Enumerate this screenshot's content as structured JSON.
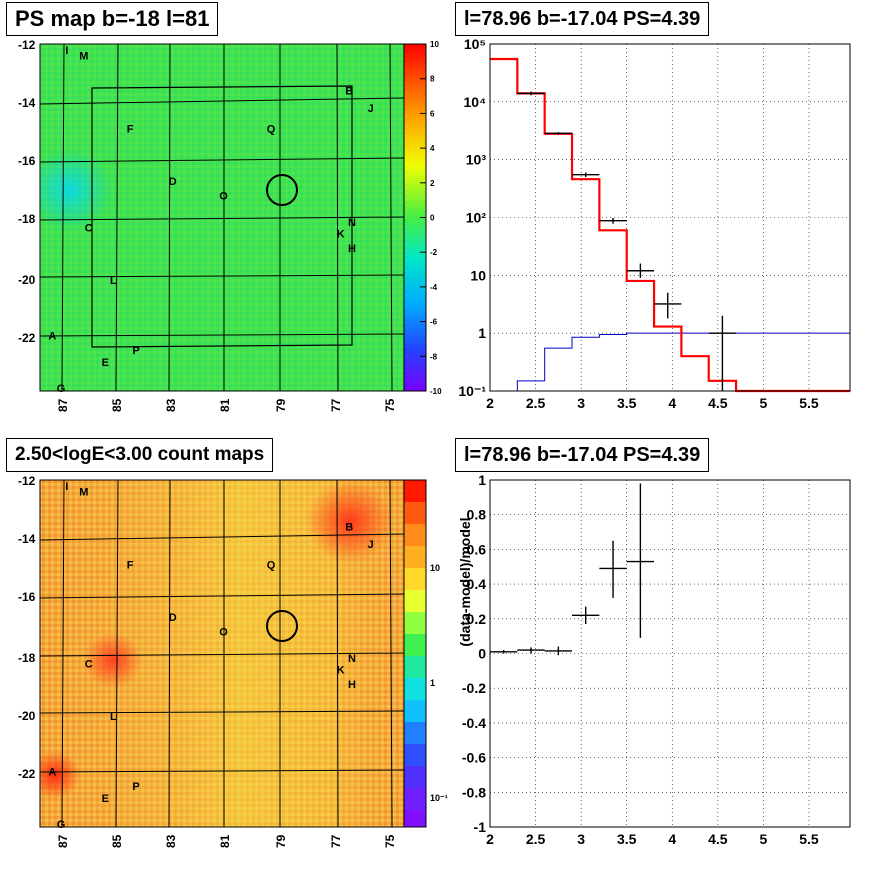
{
  "panels": {
    "top_left_title": "PS map b=-18 l=81",
    "top_right_title": "l=78.96 b=-17.04 PS=4.39",
    "bottom_left_title": "2.50<logE<3.00 count maps",
    "bottom_right_title": "l=78.96 b=-17.04 PS=4.39"
  },
  "colors": {
    "ps_map_base": "#3ee04e",
    "count_map_base": "#f2a23a",
    "data_line": "#000000",
    "model_line": "#ff0000",
    "background_line": "#0000cc"
  },
  "chart_data": [
    {
      "type": "heatmap",
      "title": "PS map b=-18 l=81",
      "x_ticks": [
        "87",
        "85",
        "83",
        "81",
        "79",
        "77",
        "75"
      ],
      "y_ticks": [
        "-12",
        "-14",
        "-16",
        "-18",
        "-20",
        "-22"
      ],
      "xlim": [
        87.5,
        74.5
      ],
      "ylim": [
        -23.8,
        -11.9
      ],
      "colorbar": {
        "ticks": [
          "10",
          "8",
          "6",
          "4",
          "2",
          "0",
          "-2",
          "-4",
          "-6",
          "-8",
          "-10"
        ],
        "range": [
          -10,
          10
        ]
      },
      "source_labels": [
        {
          "text": "M",
          "l": 86.1,
          "b": -12.3
        },
        {
          "text": "I",
          "l": 86.6,
          "b": -12.1
        },
        {
          "text": "B",
          "l": 76.6,
          "b": -13.5
        },
        {
          "text": "J",
          "l": 75.8,
          "b": -14.1
        },
        {
          "text": "F",
          "l": 84.4,
          "b": -14.8
        },
        {
          "text": "Q",
          "l": 79.4,
          "b": -14.8
        },
        {
          "text": "D",
          "l": 82.9,
          "b": -16.6
        },
        {
          "text": "O",
          "l": 81.1,
          "b": -17.1
        },
        {
          "text": "N",
          "l": 76.5,
          "b": -18.0
        },
        {
          "text": "K",
          "l": 76.9,
          "b": -18.4
        },
        {
          "text": "H",
          "l": 76.5,
          "b": -18.9
        },
        {
          "text": "C",
          "l": 85.9,
          "b": -18.2
        },
        {
          "text": "L",
          "l": 85.0,
          "b": -20.0
        },
        {
          "text": "A",
          "l": 87.2,
          "b": -21.9
        },
        {
          "text": "P",
          "l": 84.2,
          "b": -22.4
        },
        {
          "text": "E",
          "l": 85.3,
          "b": -22.8
        },
        {
          "text": "G",
          "l": 86.9,
          "b": -23.7
        }
      ],
      "circle_center": {
        "l": 78.96,
        "b": -17.04
      }
    },
    {
      "type": "line",
      "title": "l=78.96 b=-17.04 PS=4.39",
      "x_ticks": [
        "2",
        "2.5",
        "3",
        "3.5",
        "4",
        "4.5",
        "5",
        "5.5"
      ],
      "y_ticks": [
        "10⁵",
        "10⁴",
        "10³",
        "10²",
        "10",
        "1",
        "10⁻¹"
      ],
      "xlim": [
        2.0,
        5.95
      ],
      "ylim": [
        0.1,
        100000
      ],
      "y_scale": "log",
      "grid": true,
      "bin_edges": [
        2.0,
        2.3,
        2.6,
        2.9,
        3.2,
        3.5,
        3.8,
        4.1,
        4.4,
        4.7,
        5.0,
        5.95
      ],
      "series": [
        {
          "values": [
            55000,
            14000,
            2800,
            460,
            60,
            8,
            1.3,
            0.4,
            0.15,
            0.1,
            0.1
          ]
        },
        {
          "values": [
            0.1,
            0.15,
            0.55,
            0.85,
            0.95,
            1.0,
            1.0,
            1.0,
            1.0,
            1.0,
            1.0
          ]
        }
      ],
      "data_points": [
        {
          "x": 2.45,
          "y": 14000,
          "ylo": 13000,
          "yhi": 15000
        },
        {
          "x": 2.75,
          "y": 2850,
          "ylo": 2700,
          "yhi": 3000
        },
        {
          "x": 3.05,
          "y": 550,
          "ylo": 500,
          "yhi": 600
        },
        {
          "x": 3.35,
          "y": 88,
          "ylo": 78,
          "yhi": 98
        },
        {
          "x": 3.65,
          "y": 12,
          "ylo": 9,
          "yhi": 16
        },
        {
          "x": 3.95,
          "y": 3.2,
          "ylo": 1.8,
          "yhi": 5
        },
        {
          "x": 4.55,
          "y": 1.0,
          "ylo": 0.1,
          "yhi": 2.0
        }
      ]
    },
    {
      "type": "heatmap",
      "title": "2.50<logE<3.00 count maps",
      "x_ticks": [
        "87",
        "85",
        "83",
        "81",
        "79",
        "77",
        "75"
      ],
      "y_ticks": [
        "-12",
        "-14",
        "-16",
        "-18",
        "-20",
        "-22"
      ],
      "colorbar": {
        "ticks": [
          "10",
          "1",
          "10⁻¹"
        ],
        "scale": "log"
      }
    },
    {
      "type": "scatter",
      "title": "l=78.96 b=-17.04 PS=4.39",
      "ylabel": "(data-model)/model",
      "x_ticks": [
        "2",
        "2.5",
        "3",
        "3.5",
        "4",
        "4.5",
        "5",
        "5.5"
      ],
      "y_ticks": [
        "1",
        "0.8",
        "0.6",
        "0.4",
        "0.2",
        "0",
        "-0.2",
        "-0.4",
        "-0.6",
        "-0.8",
        "-1"
      ],
      "xlim": [
        2.0,
        5.95
      ],
      "ylim": [
        -1,
        1
      ],
      "grid": true,
      "points": [
        {
          "x": 2.15,
          "xerr": 0.15,
          "y": 0.01,
          "ylo": 0.0,
          "yhi": 0.02
        },
        {
          "x": 2.45,
          "xerr": 0.15,
          "y": 0.02,
          "ylo": 0.0,
          "yhi": 0.035
        },
        {
          "x": 2.75,
          "xerr": 0.15,
          "y": 0.015,
          "ylo": -0.01,
          "yhi": 0.04
        },
        {
          "x": 3.05,
          "xerr": 0.15,
          "y": 0.22,
          "ylo": 0.17,
          "yhi": 0.27
        },
        {
          "x": 3.35,
          "xerr": 0.15,
          "y": 0.49,
          "ylo": 0.32,
          "yhi": 0.65
        },
        {
          "x": 3.65,
          "xerr": 0.15,
          "y": 0.53,
          "ylo": 0.09,
          "yhi": 0.98
        }
      ]
    }
  ]
}
